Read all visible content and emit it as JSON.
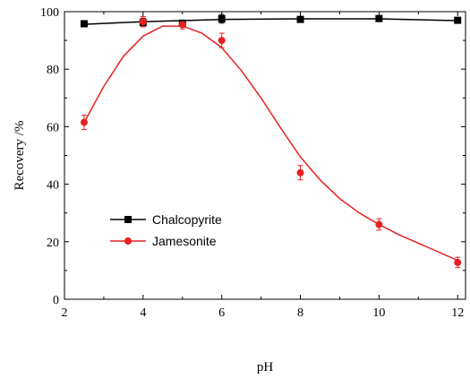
{
  "chart_data": {
    "type": "line",
    "xlabel": "pH",
    "ylabel": "Recovery /%",
    "xlim": [
      2,
      12.2
    ],
    "ylim": [
      0,
      100
    ],
    "xticks": [
      2,
      4,
      6,
      8,
      10,
      12
    ],
    "yticks": [
      0,
      20,
      40,
      60,
      80,
      100
    ],
    "legend_position": "center-left",
    "series": [
      {
        "name": "Chalcopyrite",
        "color": "#000000",
        "marker": "square",
        "points": [
          {
            "x": 2.5,
            "y": 95.8,
            "err": 0.8
          },
          {
            "x": 4,
            "y": 96.2,
            "err": 1.5
          },
          {
            "x": 5,
            "y": 96.0,
            "err": 0
          },
          {
            "x": 6,
            "y": 97.5,
            "err": 1.5
          },
          {
            "x": 8,
            "y": 97.3,
            "err": 0.6
          },
          {
            "x": 10,
            "y": 97.6,
            "err": 0.7
          },
          {
            "x": 12,
            "y": 97.0,
            "err": 1.0
          }
        ],
        "fit": [
          [
            2.5,
            95.6
          ],
          [
            4,
            96.5
          ],
          [
            6,
            97.3
          ],
          [
            8,
            97.5
          ],
          [
            10,
            97.5
          ],
          [
            12,
            96.9
          ]
        ]
      },
      {
        "name": "Jamesonite",
        "color": "#e82020",
        "marker": "circle",
        "points": [
          {
            "x": 2.5,
            "y": 61.5,
            "err": 2.5
          },
          {
            "x": 4,
            "y": 96.5,
            "err": 1.8
          },
          {
            "x": 5,
            "y": 95.5,
            "err": 1.5
          },
          {
            "x": 6,
            "y": 90.0,
            "err": 2.5
          },
          {
            "x": 8,
            "y": 44.0,
            "err": 2.5
          },
          {
            "x": 10,
            "y": 26.0,
            "err": 2.0
          },
          {
            "x": 12,
            "y": 12.8,
            "err": 1.8
          }
        ],
        "fit": [
          [
            2.5,
            61.5
          ],
          [
            3.0,
            74.0
          ],
          [
            3.5,
            84.5
          ],
          [
            4.0,
            91.5
          ],
          [
            4.5,
            95.0
          ],
          [
            5.0,
            95.0
          ],
          [
            5.5,
            92.5
          ],
          [
            6.0,
            87.5
          ],
          [
            6.5,
            79.5
          ],
          [
            7.0,
            70.0
          ],
          [
            7.5,
            59.5
          ],
          [
            8.0,
            49.5
          ],
          [
            8.5,
            41.5
          ],
          [
            9.0,
            35.0
          ],
          [
            9.5,
            30.0
          ],
          [
            10.0,
            26.0
          ],
          [
            10.5,
            22.5
          ],
          [
            11.0,
            19.5
          ],
          [
            11.5,
            16.5
          ],
          [
            12.0,
            13.5
          ]
        ]
      }
    ]
  }
}
